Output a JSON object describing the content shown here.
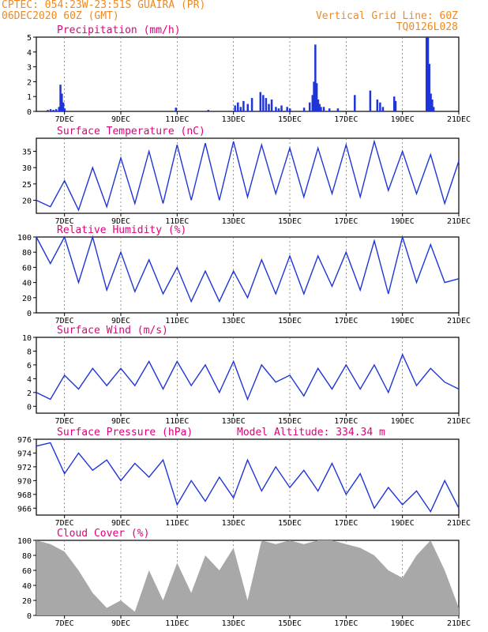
{
  "header": {
    "line1_left": "CPTEC:   054:23W-23:51S  GUAIRA (PR)",
    "line2_left": "06DEC2020 60Z (GMT)",
    "line1_right": "Vertical Grid Line: 60Z",
    "line2_right": "TQ0126L028"
  },
  "colors": {
    "header": "#ee8a22",
    "title": "#e0007a",
    "series": "#1f35d8",
    "cloud": "#a8a8a8",
    "grid": "#666666"
  },
  "x_axis": {
    "ticks": [
      "7DEC",
      "9DEC",
      "11DEC",
      "13DEC",
      "15DEC",
      "17DEC",
      "19DEC",
      "21DEC"
    ],
    "range_days": [
      6.0,
      21.0
    ]
  },
  "chart_data": [
    {
      "type": "bar",
      "title": "Precipitation (mm/h)",
      "ylim": [
        0,
        5
      ],
      "yticks": [
        "0",
        "1",
        "2",
        "3",
        "4",
        "5"
      ],
      "x": [
        6.4,
        6.5,
        6.6,
        6.7,
        6.8,
        6.85,
        6.9,
        6.95,
        7.0,
        10.95,
        12.1,
        13.05,
        13.15,
        13.25,
        13.35,
        13.5,
        13.65,
        13.95,
        14.05,
        14.15,
        14.25,
        14.35,
        14.5,
        14.6,
        14.7,
        14.9,
        15.0,
        15.5,
        15.7,
        15.8,
        15.85,
        15.9,
        15.95,
        16.0,
        16.05,
        16.1,
        16.2,
        16.4,
        16.7,
        17.3,
        17.85,
        18.1,
        18.2,
        18.3,
        18.7,
        18.75,
        19.85,
        19.9,
        19.95,
        20.0,
        20.05,
        20.1
      ],
      "values": [
        0.1,
        0.15,
        0.1,
        0.15,
        0.3,
        1.8,
        1.2,
        0.6,
        0.2,
        0.25,
        0.1,
        0.4,
        0.6,
        0.3,
        0.7,
        0.5,
        0.9,
        1.3,
        1.1,
        0.9,
        0.5,
        0.8,
        0.3,
        0.2,
        0.4,
        0.3,
        0.2,
        0.25,
        0.6,
        1.1,
        2.0,
        4.5,
        1.9,
        0.8,
        0.5,
        0.3,
        0.3,
        0.2,
        0.2,
        1.1,
        1.4,
        0.8,
        0.6,
        0.3,
        1.0,
        0.7,
        5.0,
        5.0,
        3.2,
        1.2,
        0.8,
        0.3
      ]
    },
    {
      "type": "line",
      "title": "Surface Temperature (nC)",
      "ylim": [
        16,
        39
      ],
      "yticks": [
        "20",
        "25",
        "30",
        "35"
      ],
      "series": [
        {
          "x": [
            6.0,
            6.5,
            7.0,
            7.5,
            8.0,
            8.5,
            9.0,
            9.5,
            10.0,
            10.5,
            11.0,
            11.5,
            12.0,
            12.5,
            13.0,
            13.5,
            14.0,
            14.5,
            15.0,
            15.5,
            16.0,
            16.5,
            17.0,
            17.5,
            18.0,
            18.5,
            19.0,
            19.5,
            20.0,
            20.5,
            21.0
          ],
          "values": [
            20,
            18,
            26,
            17,
            30,
            18,
            33,
            19,
            35,
            19,
            37,
            20,
            37.5,
            20,
            38,
            21,
            37,
            22,
            36,
            21,
            36,
            22,
            37,
            21,
            38,
            23,
            35,
            22,
            34,
            19,
            32
          ]
        }
      ]
    },
    {
      "type": "line",
      "title": "Relative Humidity (%)",
      "ylim": [
        0,
        100
      ],
      "yticks": [
        "0",
        "20",
        "40",
        "60",
        "80",
        "100"
      ],
      "series": [
        {
          "x": [
            6.0,
            6.5,
            7.0,
            7.5,
            8.0,
            8.5,
            9.0,
            9.5,
            10.0,
            10.5,
            11.0,
            11.5,
            12.0,
            12.5,
            13.0,
            13.5,
            14.0,
            14.5,
            15.0,
            15.5,
            16.0,
            16.5,
            17.0,
            17.5,
            18.0,
            18.5,
            19.0,
            19.5,
            20.0,
            20.5,
            21.0
          ],
          "values": [
            100,
            65,
            100,
            40,
            100,
            30,
            80,
            28,
            70,
            25,
            60,
            15,
            55,
            15,
            55,
            20,
            70,
            25,
            75,
            25,
            75,
            35,
            80,
            30,
            95,
            25,
            100,
            40,
            90,
            40,
            45
          ]
        }
      ]
    },
    {
      "type": "line",
      "title": "Surface Wind (m/s)",
      "ylim": [
        -1,
        10
      ],
      "yticks": [
        "0",
        "2",
        "4",
        "6",
        "8",
        "10"
      ],
      "series": [
        {
          "x": [
            6.0,
            6.5,
            7.0,
            7.5,
            8.0,
            8.5,
            9.0,
            9.5,
            10.0,
            10.5,
            11.0,
            11.5,
            12.0,
            12.5,
            13.0,
            13.5,
            14.0,
            14.5,
            15.0,
            15.5,
            16.0,
            16.5,
            17.0,
            17.5,
            18.0,
            18.5,
            19.0,
            19.5,
            20.0,
            20.5,
            21.0
          ],
          "values": [
            2,
            1,
            4.5,
            2.5,
            5.5,
            3,
            5.5,
            3,
            6.5,
            2.5,
            6.5,
            3,
            6,
            2,
            6.5,
            1,
            6,
            3.5,
            4.5,
            1.5,
            5.5,
            2.5,
            6,
            2.5,
            6,
            2,
            7.5,
            3,
            5.5,
            3.5,
            2.5
          ]
        }
      ]
    },
    {
      "type": "line",
      "title": "Surface Pressure (hPa)",
      "annotation": "Model Altitude: 334.34 m",
      "ylim": [
        965,
        976
      ],
      "yticks": [
        "966",
        "968",
        "970",
        "972",
        "974",
        "976"
      ],
      "series": [
        {
          "x": [
            6.0,
            6.5,
            7.0,
            7.5,
            8.0,
            8.5,
            9.0,
            9.5,
            10.0,
            10.5,
            11.0,
            11.5,
            12.0,
            12.5,
            13.0,
            13.5,
            14.0,
            14.5,
            15.0,
            15.5,
            16.0,
            16.5,
            17.0,
            17.5,
            18.0,
            18.5,
            19.0,
            19.5,
            20.0,
            20.5,
            21.0
          ],
          "values": [
            975,
            975.5,
            971,
            974,
            971.5,
            973,
            970,
            972.5,
            970.5,
            973,
            966.5,
            970,
            967,
            970.5,
            967.5,
            973,
            968.5,
            972,
            969,
            971.5,
            968.5,
            972.5,
            968,
            971,
            966,
            969,
            966.5,
            968.5,
            965.5,
            970,
            966
          ]
        }
      ]
    },
    {
      "type": "area",
      "title": "Cloud Cover (%)",
      "ylim": [
        0,
        100
      ],
      "yticks": [
        "0",
        "20",
        "40",
        "60",
        "80",
        "100"
      ],
      "series": [
        {
          "x": [
            6.0,
            6.5,
            7.0,
            7.5,
            8.0,
            8.5,
            9.0,
            9.5,
            10.0,
            10.5,
            11.0,
            11.5,
            12.0,
            12.5,
            13.0,
            13.5,
            14.0,
            14.5,
            15.0,
            15.5,
            16.0,
            16.5,
            17.0,
            17.5,
            18.0,
            18.5,
            19.0,
            19.5,
            20.0,
            20.5,
            21.0
          ],
          "values": [
            100,
            95,
            85,
            60,
            30,
            10,
            20,
            5,
            60,
            20,
            70,
            30,
            80,
            60,
            90,
            20,
            100,
            95,
            100,
            95,
            100,
            100,
            95,
            90,
            80,
            60,
            50,
            80,
            100,
            60,
            10
          ]
        }
      ]
    }
  ]
}
